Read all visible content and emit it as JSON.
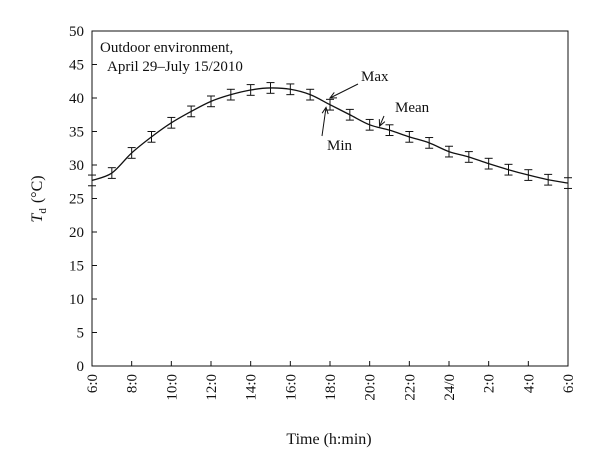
{
  "chart_data": {
    "type": "line",
    "title": "",
    "annotation_lines": [
      "Outdoor environment,",
      "April 29–July 15/2010"
    ],
    "ylabel_symbol": "T",
    "ylabel_subscript": "d",
    "ylabel_unit": "(°C)",
    "xlabel": "Time (h:min)",
    "ylim": [
      0,
      50
    ],
    "yticks": [
      0,
      5,
      10,
      15,
      20,
      25,
      30,
      35,
      40,
      45,
      50
    ],
    "xlim": [
      0,
      24
    ],
    "xtick_hours": [
      0,
      2,
      4,
      6,
      8,
      10,
      12,
      14,
      16,
      18,
      20,
      22,
      24
    ],
    "xtick_labels": [
      "6:0",
      "8:0",
      "10:0",
      "12:0",
      "14:0",
      "16:0",
      "18:0",
      "20:0",
      "22:0",
      "24/0",
      "2:0",
      "4:0",
      "6:0"
    ],
    "grid": false,
    "series": [
      {
        "x": [
          0,
          1,
          2,
          3,
          4,
          5,
          6,
          7,
          8,
          9,
          10,
          11,
          12,
          13,
          14,
          15,
          16,
          17,
          18,
          19,
          20,
          21,
          22,
          23,
          24
        ],
        "values": [
          27.7,
          28.8,
          31.8,
          34.2,
          36.3,
          38.0,
          39.5,
          40.5,
          41.2,
          41.5,
          41.3,
          40.5,
          39.0,
          37.5,
          36.0,
          35.2,
          34.2,
          33.3,
          32.0,
          31.2,
          30.2,
          29.3,
          28.5,
          27.8,
          27.3
        ],
        "error": [
          0.8,
          0.8,
          0.8,
          0.8,
          0.8,
          0.8,
          0.8,
          0.8,
          0.8,
          0.8,
          0.8,
          0.8,
          0.8,
          0.8,
          0.8,
          0.8,
          0.8,
          0.8,
          0.8,
          0.8,
          0.8,
          0.8,
          0.8,
          0.8,
          0.8
        ]
      }
    ],
    "callouts": [
      {
        "label": "Max",
        "x": 12.0,
        "y": 40.0
      },
      {
        "label": "Mean",
        "x": 14.5,
        "y": 35.8
      },
      {
        "label": "Min",
        "x": 11.8,
        "y": 38.6
      }
    ]
  }
}
